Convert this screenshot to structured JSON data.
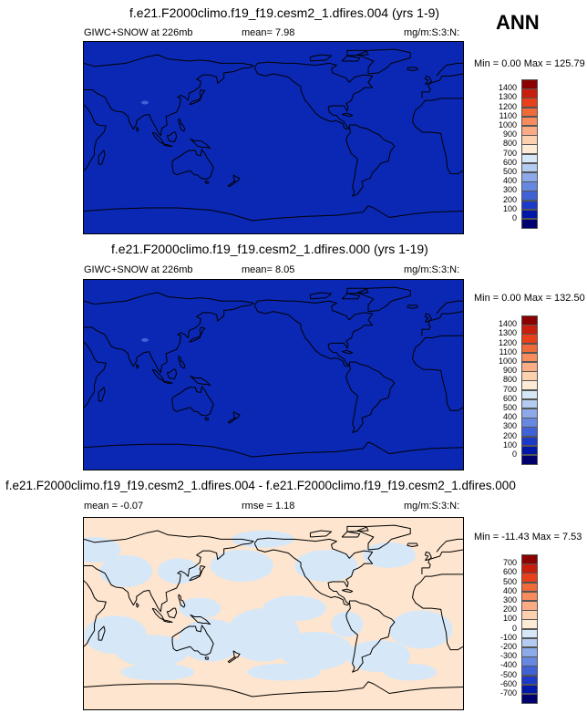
{
  "season": "ANN",
  "panels": [
    {
      "title": "f.e21.F2000climo.f19_f19.cesm2_1.dfires.004 (yrs 1-9)",
      "left_label": "GIWC+SNOW at 226mb",
      "mid_label": "mean=  7.98",
      "units": "mg/m:S:3:N:",
      "minmax": "Min =  0.00 Max = 125.79"
    },
    {
      "title": "f.e21.F2000climo.f19_f19.cesm2_1.dfires.000 (yrs 1-19)",
      "left_label": "GIWC+SNOW at 226mb",
      "mid_label": "mean=  8.05",
      "units": "mg/m:S:3:N:",
      "minmax": "Min =  0.00 Max = 132.50"
    },
    {
      "title": "f.e21.F2000climo.f19_f19.cesm2_1.dfires.004 - f.e21.F2000climo.f19_f19.cesm2_1.dfires.000",
      "left_label": "mean =  -0.07",
      "mid_label": "rmse =  1.18",
      "units": "mg/m:S:3:N:",
      "minmax": "Min = -11.43 Max =  7.53"
    }
  ],
  "chart_data": [
    {
      "type": "heatmap",
      "title": "f.e21.F2000climo.f19_f19.cesm2_1.dfires.004 (yrs 1-9)",
      "variable": "GIWC+SNOW at 226mb",
      "mean": 7.98,
      "min": 0.0,
      "max": 125.79,
      "colorbar_levels": [
        "1400",
        "1300",
        "1200",
        "1100",
        "1000",
        "900",
        "800",
        "700",
        "600",
        "500",
        "400",
        "300",
        "200",
        "100",
        "0"
      ],
      "colorbar_colors": [
        "#8b0000",
        "#c81e0e",
        "#e8401a",
        "#f06a3a",
        "#f88c5c",
        "#fbac84",
        "#fdd0b0",
        "#fdebd6",
        "#d6e8f8",
        "#b4ccf2",
        "#8caaea",
        "#6688e0",
        "#3f62d6",
        "#1c3ac8",
        "#0018a8",
        "#00006e"
      ],
      "map_fill": "#0a28b4"
    },
    {
      "type": "heatmap",
      "title": "f.e21.F2000climo.f19_f19.cesm2_1.dfires.000 (yrs 1-19)",
      "variable": "GIWC+SNOW at 226mb",
      "mean": 8.05,
      "min": 0.0,
      "max": 132.5,
      "colorbar_levels": [
        "1400",
        "1300",
        "1200",
        "1100",
        "1000",
        "900",
        "800",
        "700",
        "600",
        "500",
        "400",
        "300",
        "200",
        "100",
        "0"
      ],
      "colorbar_colors": [
        "#8b0000",
        "#c81e0e",
        "#e8401a",
        "#f06a3a",
        "#f88c5c",
        "#fbac84",
        "#fdd0b0",
        "#fdebd6",
        "#d6e8f8",
        "#b4ccf2",
        "#8caaea",
        "#6688e0",
        "#3f62d6",
        "#1c3ac8",
        "#0018a8",
        "#00006e"
      ],
      "map_fill": "#0a28b4"
    },
    {
      "type": "heatmap",
      "title": "f.e21.F2000climo.f19_f19.cesm2_1.dfires.004 - f.e21.F2000climo.f19_f19.cesm2_1.dfires.000",
      "mean": -0.07,
      "rmse": 1.18,
      "min": -11.43,
      "max": 7.53,
      "colorbar_levels": [
        "700",
        "600",
        "500",
        "400",
        "300",
        "200",
        "100",
        "0",
        "-100",
        "-200",
        "-300",
        "-400",
        "-500",
        "-600",
        "-700"
      ],
      "colorbar_colors": [
        "#8b0000",
        "#c81e0e",
        "#e8401a",
        "#f06a3a",
        "#f88c5c",
        "#fbac84",
        "#fdd0b0",
        "#fdebd6",
        "#d6e8f8",
        "#b4ccf2",
        "#8caaea",
        "#6688e0",
        "#3f62d6",
        "#1c3ac8",
        "#0018a8",
        "#00006e"
      ],
      "map_fill": "#fde5cf",
      "map_fill_alt": "#d6e8f8"
    }
  ]
}
